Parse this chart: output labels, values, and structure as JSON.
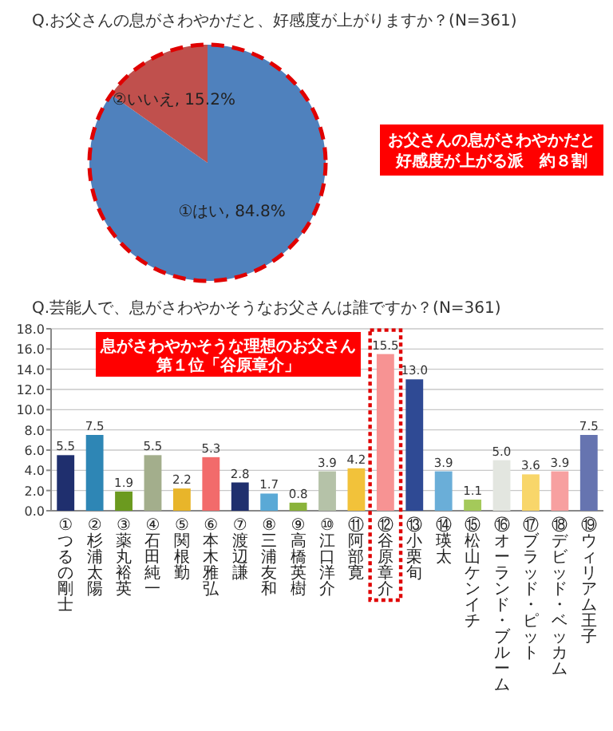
{
  "chart_data": [
    {
      "type": "pie",
      "title": "Q.お父さんの息がさわやかだと、好感度が上がりますか？(N=361)",
      "categories": [
        "①はい",
        "②いいえ"
      ],
      "values": [
        84.8,
        15.2
      ],
      "colors": [
        "#4f81bd",
        "#c0504d"
      ],
      "value_labels": [
        "84.8%",
        "15.2%"
      ],
      "annotations": [
        "お父さんの息がさわやかだと好感度が上がる派　約８割"
      ]
    },
    {
      "type": "bar",
      "title": "Q.芸能人で、息がさわやかそうなお父さんは誰ですか？(N=361)",
      "categories": [
        "①つるの剛士",
        "②杉浦太陽",
        "③薬丸裕英",
        "④石田純一",
        "⑤関根勤",
        "⑥本木雅弘",
        "⑦渡辺謙",
        "⑧三浦友和",
        "⑨高橋英樹",
        "⑩江口洋介",
        "⑪阿部寛",
        "⑫谷原章介",
        "⑬小栗旬",
        "⑭瑛太",
        "⑮松山ケンイチ",
        "⑯オーランド・ブルーム",
        "⑰ブラッド・ピット",
        "⑱デビッド・ベッカム",
        "⑲ウィリアム王子"
      ],
      "values": [
        5.5,
        7.5,
        1.9,
        5.5,
        2.2,
        5.3,
        2.8,
        1.7,
        0.8,
        3.9,
        4.2,
        15.5,
        13.0,
        3.9,
        1.1,
        5.0,
        3.6,
        3.9,
        7.5
      ],
      "value_labels": [
        "5.5",
        "7.5",
        "1.9",
        "5.5",
        "2.2",
        "5.3",
        "2.8",
        "1.7",
        "0.8",
        "3.9",
        "4.2",
        "15.5",
        "13.0",
        "3.9",
        "1.1",
        "5.0",
        "3.6",
        "3.9",
        "7.5"
      ],
      "colors": [
        "#1f2f6e",
        "#2e86b5",
        "#6b9a1f",
        "#a3ae8c",
        "#e8b52a",
        "#f26b6b",
        "#1f2f6e",
        "#5aa9d6",
        "#8ab33a",
        "#b5c2a8",
        "#f2c23a",
        "#f79393",
        "#2f4a94",
        "#6aaed8",
        "#a4c95a",
        "#e3e6e0",
        "#f8d66a",
        "#f7a0a0",
        "#6674b0"
      ],
      "ylim": [
        0,
        18
      ],
      "yticks": [
        {
          "value": 0,
          "label": "0.0"
        },
        {
          "value": 2,
          "label": "2.0"
        },
        {
          "value": 4,
          "label": "4.0"
        },
        {
          "value": 6,
          "label": "6.0"
        },
        {
          "value": 8,
          "label": "8.0"
        },
        {
          "value": 10,
          "label": "10.0"
        },
        {
          "value": 12,
          "label": "12.0"
        },
        {
          "value": 14,
          "label": "14.0"
        },
        {
          "value": 16,
          "label": "16.0"
        },
        {
          "value": 18,
          "label": "18.0"
        }
      ],
      "grid": "y",
      "annotations": [
        "息がさわやかそうな理想のお父さん第１位「谷原章介」"
      ]
    }
  ]
}
